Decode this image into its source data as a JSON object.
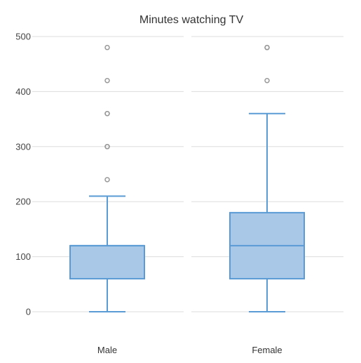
{
  "chart_data": {
    "type": "box",
    "title": "Minutes watching TV",
    "xlabel": "",
    "ylabel": "",
    "ylim": [
      0,
      500
    ],
    "yticks": [
      0,
      100,
      200,
      300,
      400,
      500
    ],
    "grid": true,
    "categories": [
      "Male",
      "Female"
    ],
    "boxes": [
      {
        "category": "Male",
        "min": 0,
        "q1": 60,
        "median": 120,
        "q3": 120,
        "max": 210,
        "outliers": [
          240,
          300,
          300,
          360,
          360,
          420,
          480
        ]
      },
      {
        "category": "Female",
        "min": 0,
        "q1": 60,
        "median": 120,
        "q3": 180,
        "max": 360,
        "outliers": [
          420,
          480,
          480
        ]
      }
    ],
    "colors": {
      "box_fill": "#a9c8e8",
      "box_stroke": "#5b9bd5",
      "grid": "#dddddd",
      "outlier": "#999999"
    }
  }
}
